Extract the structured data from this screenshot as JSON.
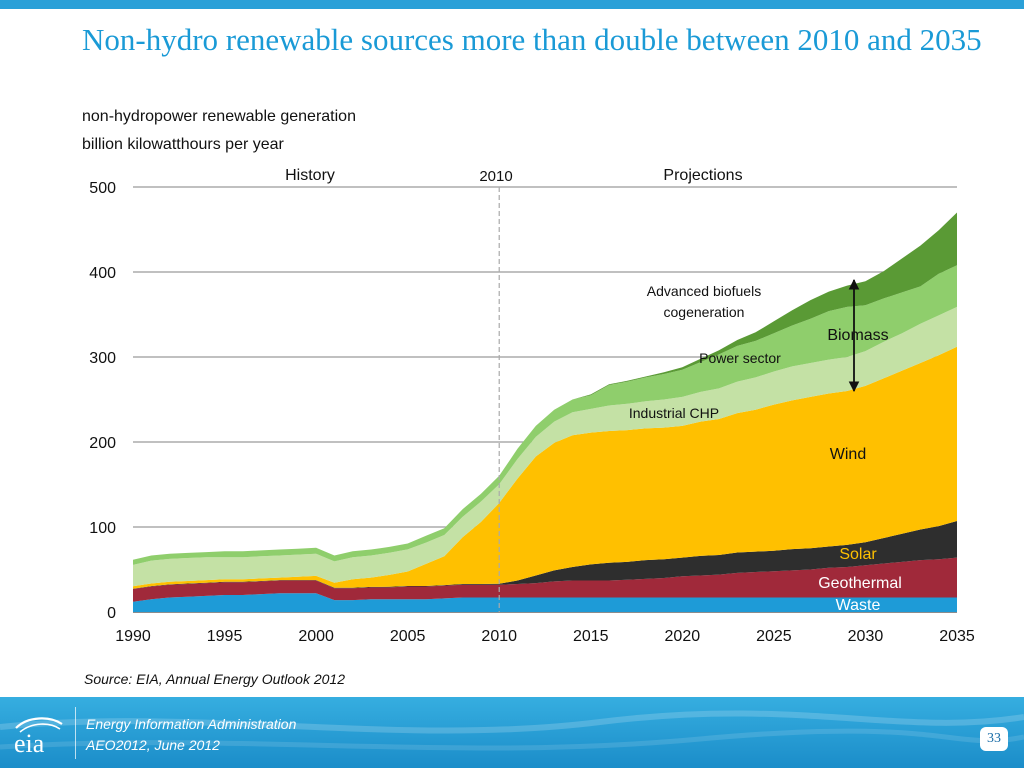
{
  "slide": {
    "title": "Non-hydro renewable sources more than double between 2010 and 2035",
    "subtitle_line1": "non-hydropower renewable generation",
    "subtitle_line2": "billion kilowatthours per year",
    "source": "Source:  EIA, Annual Energy Outlook 2012"
  },
  "footer": {
    "org": "Energy Information Administration",
    "report": "AEO2012, June 2012",
    "logo_text": "eia",
    "page_number": "33"
  },
  "colors": {
    "title": "#1a9ad6",
    "footer": "#1b8dc9",
    "waste": "#1e9bd7",
    "geothermal": "#a0293a",
    "solar": "#2e2e2e",
    "wind": "#ffc000",
    "industrial_chp": "#c4e1a5",
    "power_sector": "#8fce6c",
    "advanced_biofuels": "#5a9a35"
  },
  "chart_data": {
    "type": "area",
    "stacked": true,
    "x": [
      1990,
      1991,
      1992,
      1993,
      1994,
      1995,
      1996,
      1997,
      1998,
      1999,
      2000,
      2001,
      2002,
      2003,
      2004,
      2005,
      2006,
      2007,
      2008,
      2009,
      2010,
      2011,
      2012,
      2013,
      2014,
      2015,
      2016,
      2017,
      2018,
      2019,
      2020,
      2021,
      2022,
      2023,
      2024,
      2025,
      2026,
      2027,
      2028,
      2029,
      2030,
      2031,
      2032,
      2033,
      2034,
      2035
    ],
    "xlim": [
      1990,
      2035
    ],
    "ylim": [
      0,
      500
    ],
    "yticks": [
      0,
      100,
      200,
      300,
      400,
      500
    ],
    "xticks": [
      1990,
      1995,
      2000,
      2005,
      2010,
      2015,
      2020,
      2025,
      2030,
      2035
    ],
    "grid": "horizontal",
    "divider_year": 2010,
    "divider_label": "2010",
    "history_label": "History",
    "projections_label": "Projections",
    "series": [
      {
        "key": "waste",
        "name": "Waste",
        "values": [
          12,
          15,
          17,
          18,
          19,
          20,
          20,
          21,
          22,
          22,
          22,
          14,
          14,
          15,
          15,
          15,
          15,
          16,
          17,
          17,
          17,
          17,
          17,
          17,
          17,
          17,
          17,
          17,
          17,
          17,
          17,
          17,
          17,
          17,
          17,
          17,
          17,
          17,
          17,
          17,
          17,
          17,
          17,
          17,
          17,
          17
        ]
      },
      {
        "key": "geothermal",
        "name": "Geothermal",
        "values": [
          15,
          15,
          15,
          15,
          15,
          15,
          15,
          15,
          15,
          15,
          15,
          14,
          14,
          14,
          14,
          15,
          15,
          15,
          15,
          15,
          15,
          16,
          17,
          19,
          20,
          20,
          20,
          21,
          22,
          23,
          25,
          26,
          27,
          29,
          30,
          31,
          32,
          33,
          35,
          36,
          38,
          40,
          42,
          44,
          45,
          47
        ]
      },
      {
        "key": "solar",
        "name": "Solar",
        "values": [
          0.4,
          0.5,
          0.5,
          0.5,
          0.5,
          0.5,
          0.5,
          0.5,
          0.5,
          0.5,
          0.5,
          0.5,
          0.5,
          0.5,
          0.6,
          0.6,
          0.6,
          0.6,
          0.9,
          0.9,
          1.2,
          4,
          9,
          13,
          16,
          19,
          21,
          21,
          22,
          22,
          22,
          23,
          23,
          24,
          24,
          24,
          25,
          25,
          25,
          26,
          27,
          30,
          33,
          36,
          39,
          43
        ]
      },
      {
        "key": "wind",
        "name": "Wind",
        "values": [
          3,
          3,
          3,
          3,
          3,
          3,
          3,
          3,
          3,
          4,
          5,
          6,
          10,
          11,
          14,
          17,
          26,
          34,
          55,
          73,
          95,
          120,
          140,
          150,
          155,
          155,
          155,
          155,
          155,
          155,
          155,
          158,
          160,
          164,
          167,
          172,
          175,
          178,
          180,
          181,
          184,
          188,
          192,
          196,
          201,
          205
        ]
      },
      {
        "key": "industrial_chp",
        "name": "Industrial CHP",
        "values": [
          25,
          27,
          27,
          27,
          27,
          26,
          26,
          26,
          26,
          26,
          26,
          25,
          26,
          26,
          26,
          26,
          25,
          25,
          24,
          24,
          22,
          23,
          23,
          25,
          27,
          28,
          30,
          31,
          32,
          33,
          34,
          35,
          36,
          37,
          38,
          39,
          40,
          40,
          40,
          40,
          41,
          43,
          44,
          46,
          47,
          47
        ]
      },
      {
        "key": "power_sector",
        "name": "Power sector",
        "values": [
          6,
          6,
          6,
          6,
          6,
          7,
          7,
          7,
          7,
          7,
          7,
          7,
          7,
          7,
          7,
          7,
          8,
          8,
          9,
          9,
          10,
          12,
          13,
          14,
          15,
          16,
          24,
          26,
          28,
          30,
          32,
          35,
          40,
          42,
          43,
          45,
          48,
          52,
          57,
          59,
          54,
          51,
          48,
          44,
          49,
          49
        ]
      },
      {
        "key": "advanced_biofuels",
        "name": "Advanced biofuels cogeneration",
        "values": [
          0,
          0,
          0,
          0,
          0,
          0,
          0,
          0,
          0,
          0,
          0,
          0,
          0,
          0,
          0,
          0,
          0,
          0,
          0,
          0,
          0,
          0,
          0,
          0,
          0,
          1,
          1,
          1,
          1,
          2,
          3,
          4,
          5,
          7,
          10,
          14,
          18,
          22,
          23,
          25,
          28,
          32,
          40,
          48,
          51,
          62
        ]
      }
    ],
    "labels": {
      "waste": "Waste",
      "geothermal": "Geothermal",
      "solar": "Solar",
      "wind": "Wind",
      "industrial_chp": "Industrial CHP",
      "power_sector": "Power sector",
      "advanced_biofuels_line1": "Advanced biofuels",
      "advanced_biofuels_line2": "cogeneration",
      "biomass": "Biomass"
    }
  }
}
